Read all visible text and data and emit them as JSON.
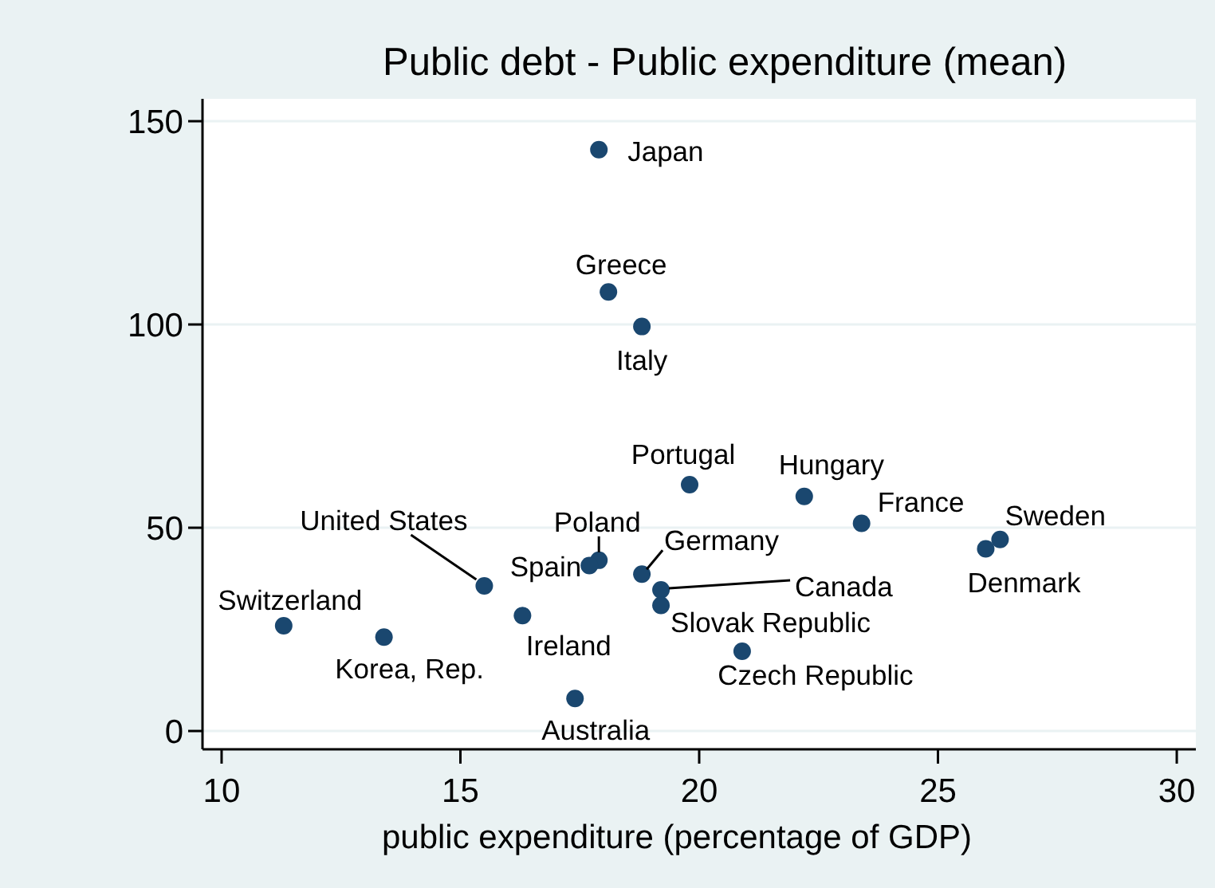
{
  "chart_data": {
    "type": "scatter",
    "title": "Public debt - Public expenditure (mean)",
    "xlabel": "public expenditure (percentage of GDP)",
    "xlim": [
      9.6,
      30.4
    ],
    "ylim": [
      -4.5,
      155.5
    ],
    "xticks": [
      10,
      15,
      20,
      25,
      30
    ],
    "yticks": [
      0,
      50,
      100,
      150
    ],
    "grid": "y",
    "marker": "circle",
    "series": [
      {
        "name": "Japan",
        "color": "#1a476f",
        "x": [
          17.9
        ],
        "values": [
          143
        ]
      },
      {
        "name": "Greece",
        "color": "#1a476f",
        "x": [
          18.1
        ],
        "values": [
          108
        ]
      },
      {
        "name": "Italy",
        "color": "#1a476f",
        "x": [
          18.8
        ],
        "values": [
          99.5
        ]
      },
      {
        "name": "Portugal",
        "color": "#1a476f",
        "x": [
          19.8
        ],
        "values": [
          60.6
        ]
      },
      {
        "name": "Poland",
        "color": "#1a476f",
        "x": [
          17.9
        ],
        "values": [
          42
        ]
      },
      {
        "name": "Spain",
        "color": "#1a476f",
        "x": [
          17.7
        ],
        "values": [
          40.7
        ]
      },
      {
        "name": "Germany",
        "color": "#1a476f",
        "x": [
          18.8
        ],
        "values": [
          38.6
        ]
      },
      {
        "name": "Canada",
        "color": "#1a476f",
        "x": [
          19.2
        ],
        "values": [
          34.7
        ]
      },
      {
        "name": "Slovak Republic",
        "color": "#1a476f",
        "x": [
          19.2
        ],
        "values": [
          30.9
        ]
      },
      {
        "name": "Czech Republic",
        "color": "#1a476f",
        "x": [
          20.9
        ],
        "values": [
          19.6
        ]
      },
      {
        "name": "Hungary",
        "color": "#1a476f",
        "x": [
          22.2
        ],
        "values": [
          57.7
        ]
      },
      {
        "name": "France",
        "color": "#1a476f",
        "x": [
          23.4
        ],
        "values": [
          51.1
        ]
      },
      {
        "name": "Sweden",
        "color": "#1a476f",
        "x": [
          26.3
        ],
        "values": [
          47.1
        ]
      },
      {
        "name": "Denmark",
        "color": "#1a476f",
        "x": [
          26.0
        ],
        "values": [
          44.8
        ]
      },
      {
        "name": "United States",
        "color": "#1a476f",
        "x": [
          15.5
        ],
        "values": [
          35.7
        ]
      },
      {
        "name": "Ireland",
        "color": "#1a476f",
        "x": [
          16.3
        ],
        "values": [
          28.4
        ]
      },
      {
        "name": "Switzerland",
        "color": "#1a476f",
        "x": [
          11.3
        ],
        "values": [
          25.9
        ]
      },
      {
        "name": "Korea, Rep.",
        "color": "#1a476f",
        "x": [
          13.4
        ],
        "values": [
          23.1
        ]
      },
      {
        "name": "Australia",
        "color": "#1a476f",
        "x": [
          17.4
        ],
        "values": [
          8
        ]
      }
    ]
  }
}
